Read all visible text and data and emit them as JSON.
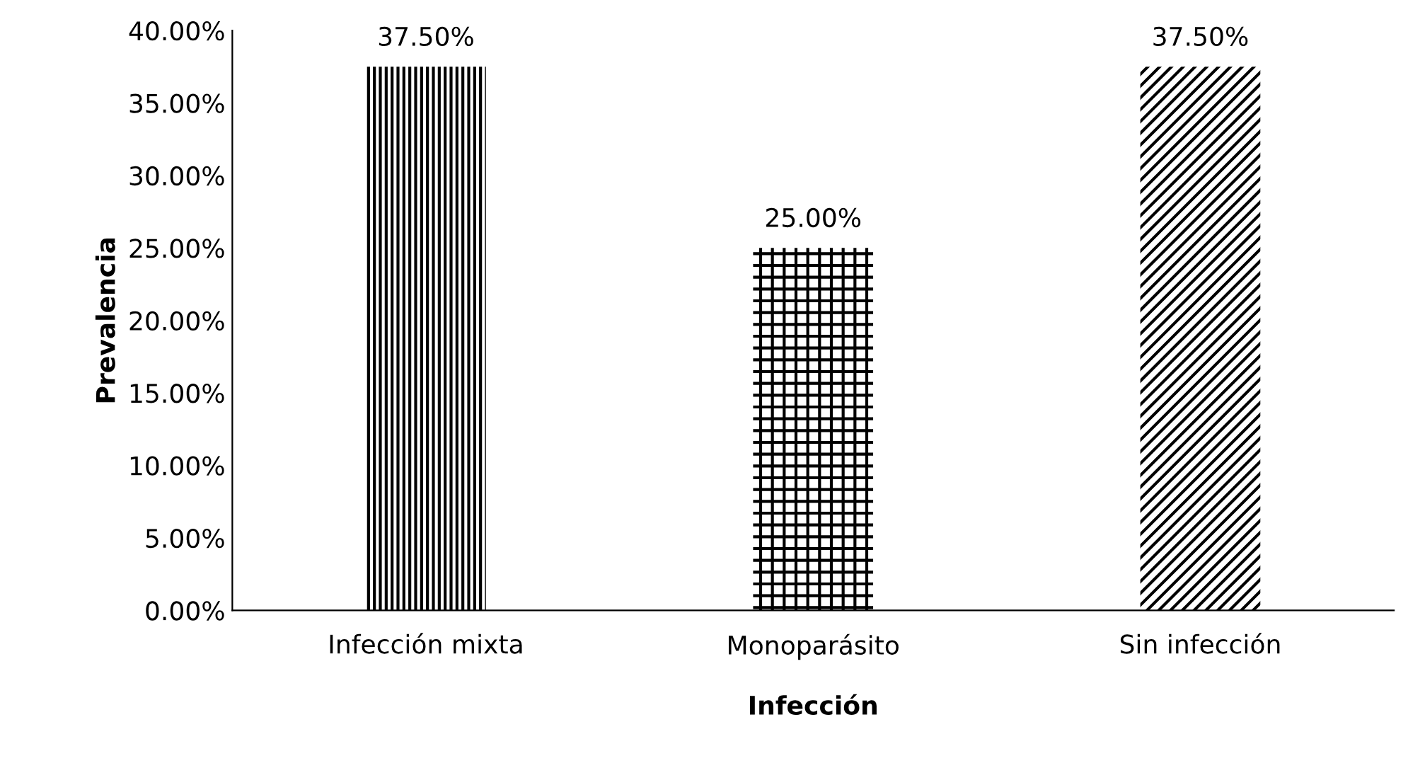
{
  "chart_data": {
    "type": "bar",
    "xlabel": "Infección",
    "ylabel": "Prevalencia",
    "categories": [
      "Infección mixta",
      "Monoparásito",
      "Sin infección"
    ],
    "values": [
      37.5,
      25,
      37.5
    ],
    "colors": [
      "#000000",
      "#000000",
      "#000000"
    ],
    "value_labels": [
      "37.50%",
      "25.00%",
      "37.50%"
    ],
    "ylim": [
      0,
      40
    ],
    "yticks": [
      {
        "value": 0,
        "label": "0.00%"
      },
      {
        "value": 5,
        "label": "5.00%"
      },
      {
        "value": 10,
        "label": "10.00%"
      },
      {
        "value": 15,
        "label": "15.00%"
      },
      {
        "value": 20,
        "label": "20.00%"
      },
      {
        "value": 25,
        "label": "25.00%"
      },
      {
        "value": 30,
        "label": "30.00%"
      },
      {
        "value": 35,
        "label": "35.00%"
      },
      {
        "value": 40,
        "label": "40.00%"
      }
    ],
    "grid": false,
    "legend": false
  }
}
